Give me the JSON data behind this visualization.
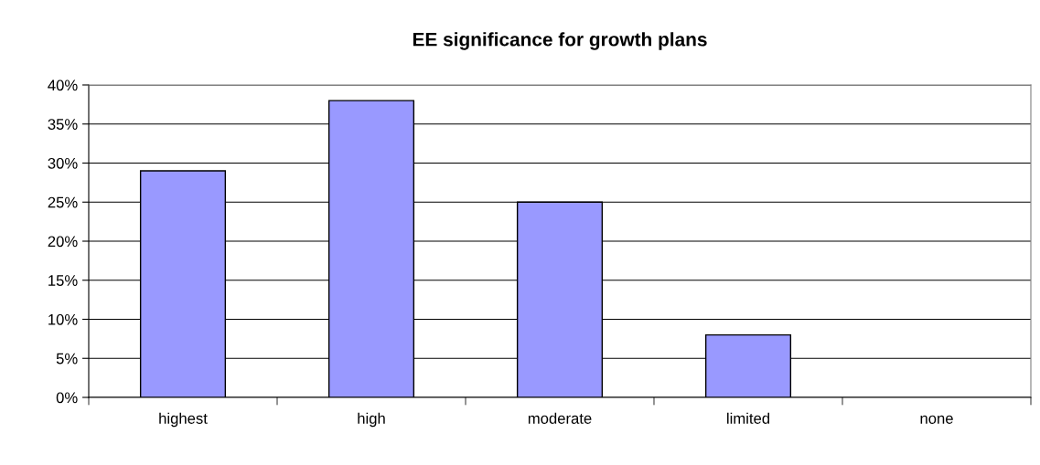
{
  "chart_data": {
    "type": "bar",
    "title": "EE significance for growth plans",
    "categories": [
      "highest",
      "high",
      "moderate",
      "limited",
      "none"
    ],
    "values": [
      29,
      38,
      25,
      8,
      0
    ],
    "color": "#9999ff",
    "ylim": [
      0,
      40
    ],
    "yticks": [
      {
        "value": 0,
        "label": "0%"
      },
      {
        "value": 5,
        "label": "5%"
      },
      {
        "value": 10,
        "label": "10%"
      },
      {
        "value": 15,
        "label": "15%"
      },
      {
        "value": 20,
        "label": "20%"
      },
      {
        "value": 25,
        "label": "25%"
      },
      {
        "value": 30,
        "label": "30%"
      },
      {
        "value": 35,
        "label": "35%"
      },
      {
        "value": 40,
        "label": "40%"
      }
    ],
    "grid": "y",
    "legend": false
  }
}
